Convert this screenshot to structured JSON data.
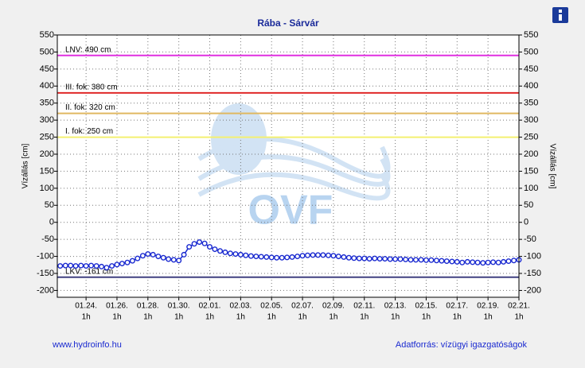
{
  "chart_data": {
    "type": "line",
    "title": "Rába - Sárvár",
    "ylabel": "Vízállás [cm]",
    "y2label": "Vízállás [cm]",
    "watermark": "OVF",
    "footer_left": "www.hydroinfo.hu",
    "footer_right": "Adatforrás: vízügyi igazgatóságok",
    "xlim": [
      -1.86,
      28
    ],
    "xticks": [
      {
        "value": 0,
        "label": "01.24."
      },
      {
        "value": 2,
        "label": "01.26."
      },
      {
        "value": 4,
        "label": "01.28."
      },
      {
        "value": 6,
        "label": "01.30."
      },
      {
        "value": 8,
        "label": "02.01."
      },
      {
        "value": 10,
        "label": "02.03."
      },
      {
        "value": 12,
        "label": "02.05."
      },
      {
        "value": 14,
        "label": "02.07."
      },
      {
        "value": 16,
        "label": "02.09."
      },
      {
        "value": 18,
        "label": "02.11."
      },
      {
        "value": 20,
        "label": "02.13."
      },
      {
        "value": 22,
        "label": "02.15."
      },
      {
        "value": 24,
        "label": "02.17."
      },
      {
        "value": 26,
        "label": "02.19."
      },
      {
        "value": 28,
        "label": "02.21."
      }
    ],
    "xtick_sublabel": "1h",
    "ylim": [
      -220,
      550
    ],
    "yticks": [
      -200,
      -150,
      -100,
      -50,
      0,
      50,
      100,
      150,
      200,
      250,
      300,
      350,
      400,
      450,
      500,
      550
    ],
    "y2lim": [
      -220,
      550
    ],
    "y2ticks": [
      -200,
      -150,
      -100,
      -50,
      0,
      50,
      100,
      150,
      200,
      250,
      300,
      350,
      400,
      450,
      500,
      550
    ],
    "grid": true,
    "reference_lines": [
      {
        "label": "LNV: 490 cm",
        "value": 490,
        "color": "#e030e0"
      },
      {
        "label": "III. fok: 380 cm",
        "value": 380,
        "color": "#e02828"
      },
      {
        "label": "II. fok: 320 cm",
        "value": 320,
        "color": "#e0b860"
      },
      {
        "label": "I. fok: 250 cm",
        "value": 250,
        "color": "#f4f070"
      },
      {
        "label": "LKV: -161 cm",
        "value": -161,
        "color": "#404080"
      }
    ],
    "x": [
      -1.67,
      -1.33,
      -1,
      -0.67,
      -0.33,
      0,
      0.33,
      0.67,
      1,
      1.33,
      1.67,
      2,
      2.33,
      2.67,
      3,
      3.33,
      3.67,
      4,
      4.33,
      4.67,
      5,
      5.33,
      5.67,
      6,
      6.33,
      6.67,
      7,
      7.33,
      7.67,
      8,
      8.33,
      8.67,
      9,
      9.33,
      9.67,
      10,
      10.33,
      10.67,
      11,
      11.33,
      11.67,
      12,
      12.33,
      12.67,
      13,
      13.33,
      13.67,
      14,
      14.33,
      14.67,
      15,
      15.33,
      15.67,
      16,
      16.33,
      16.67,
      17,
      17.33,
      17.67,
      18,
      18.33,
      18.67,
      19,
      19.33,
      19.67,
      20,
      20.33,
      20.67,
      21,
      21.33,
      21.67,
      22,
      22.33,
      22.67,
      23,
      23.33,
      23.67,
      24,
      24.33,
      24.67,
      25,
      25.33,
      25.67,
      26,
      26.33,
      26.67,
      27,
      27.33,
      27.67,
      28
    ],
    "series": [
      {
        "color": "#1a2ad0",
        "values": [
          -128,
          -127,
          -127,
          -128,
          -127,
          -128,
          -127,
          -128,
          -130,
          -133,
          -128,
          -124,
          -121,
          -118,
          -113,
          -106,
          -98,
          -93,
          -95,
          -100,
          -104,
          -108,
          -110,
          -112,
          -95,
          -72,
          -63,
          -58,
          -62,
          -72,
          -79,
          -84,
          -88,
          -91,
          -93,
          -95,
          -97,
          -99,
          -100,
          -101,
          -102,
          -103,
          -104,
          -104,
          -103,
          -102,
          -100,
          -98,
          -97,
          -96,
          -96,
          -96,
          -97,
          -98,
          -100,
          -102,
          -104,
          -105,
          -106,
          -106,
          -107,
          -106,
          -107,
          -107,
          -108,
          -108,
          -108,
          -109,
          -110,
          -110,
          -110,
          -111,
          -111,
          -112,
          -113,
          -114,
          -115,
          -116,
          -118,
          -116,
          -117,
          -118,
          -119,
          -118,
          -117,
          -118,
          -116,
          -114,
          -112,
          -110
        ]
      }
    ]
  }
}
